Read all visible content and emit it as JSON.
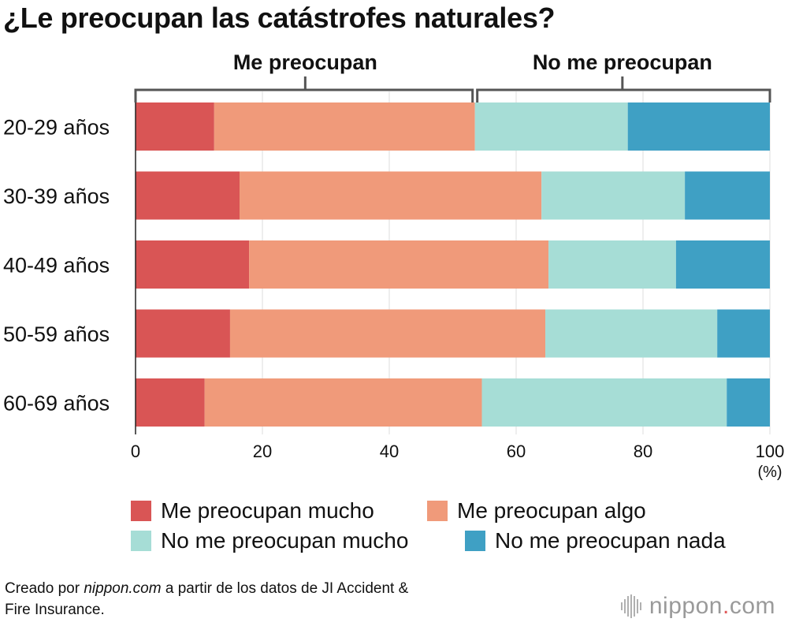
{
  "title": "¿Le preocupan las catástrofes naturales?",
  "groups": {
    "left": "Me preocupan",
    "right": "No me preocupan"
  },
  "legend": {
    "mucho": "Me preocupan mucho",
    "algo": "Me preocupan algo",
    "no_mucho": "No me preocupan mucho",
    "nada": "No me preocupan nada"
  },
  "credit": {
    "prefix": "Creado por ",
    "site": "nippon.com",
    "suffix": " a partir de los datos de JI Accident &",
    "line2": "Fire Insurance."
  },
  "logo": {
    "name": "nippon",
    "dot": ".",
    "tld": "com"
  },
  "colors": {
    "mucho": "#d95555",
    "algo": "#f09a7a",
    "no_mucho": "#a6ddd6",
    "nada": "#3fa0c4",
    "bracket": "#555555"
  },
  "chart_data": {
    "type": "bar",
    "orientation": "horizontal",
    "stacked": true,
    "title": "¿Le preocupan las catástrofes naturales?",
    "categories": [
      "20-29 años",
      "30-39 años",
      "40-49 años",
      "50-59 años",
      "60-69 años"
    ],
    "series": [
      {
        "name": "Me preocupan mucho",
        "key": "mucho",
        "values": [
          12.4,
          16.4,
          17.9,
          14.9,
          10.9
        ]
      },
      {
        "name": "Me preocupan algo",
        "key": "algo",
        "values": [
          41.1,
          47.6,
          47.2,
          49.7,
          43.7
        ]
      },
      {
        "name": "No me preocupan mucho",
        "key": "no_mucho",
        "values": [
          24.1,
          22.6,
          20.1,
          27.1,
          38.6
        ]
      },
      {
        "name": "No me preocupan nada",
        "key": "nada",
        "values": [
          22.4,
          13.4,
          14.8,
          8.3,
          6.8
        ]
      }
    ],
    "x_ticks": [
      0,
      20,
      40,
      60,
      80,
      100
    ],
    "x_unit": "(%)",
    "xlim": [
      0,
      100
    ],
    "grid": true,
    "legend_position": "bottom"
  }
}
